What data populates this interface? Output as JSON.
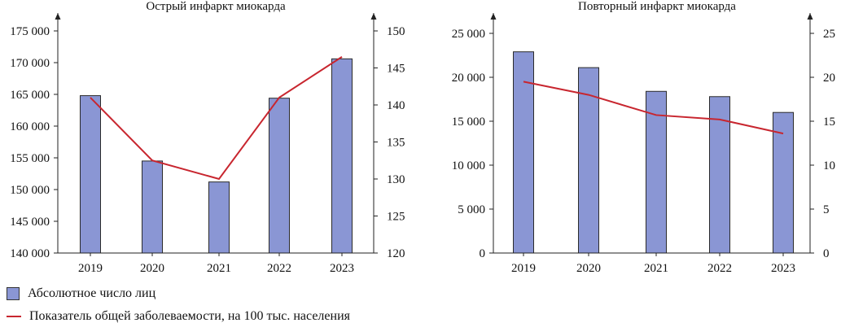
{
  "colors": {
    "bar": "#8A96D4",
    "bar_stroke": "#2b2b2b",
    "line": "#C8262F",
    "axis": "#222222"
  },
  "legend": {
    "bar_label": "Абсолютное число лиц",
    "line_label": "Показатель общей заболеваемости, на 100 тыс. населения"
  },
  "chart_data": [
    {
      "type": "bar",
      "title": "Острый инфаркт миокарда",
      "categories": [
        "2019",
        "2020",
        "2021",
        "2022",
        "2023"
      ],
      "series": [
        {
          "name": "Абсолютное число лиц",
          "type": "bar",
          "axis": "left",
          "values": [
            164800,
            154500,
            151200,
            164400,
            170600
          ]
        },
        {
          "name": "Показатель общей заболеваемости, на 100 тыс. населения",
          "type": "line",
          "axis": "right",
          "values": [
            141.0,
            132.5,
            130.0,
            141.0,
            146.5
          ]
        }
      ],
      "left_axis": {
        "ylim": [
          140000,
          175000
        ],
        "ticks": [
          "140 000",
          "145 000",
          "150 000",
          "155 000",
          "160 000",
          "165 000",
          "170 000",
          "175 000"
        ]
      },
      "right_axis": {
        "ylim": [
          120,
          150
        ],
        "ticks": [
          "120",
          "125",
          "130",
          "135",
          "140",
          "145",
          "150"
        ]
      },
      "grid": false,
      "legend_position": "bottom-left"
    },
    {
      "type": "bar",
      "title": "Повторный инфаркт миокарда",
      "categories": [
        "2019",
        "2020",
        "2021",
        "2022",
        "2023"
      ],
      "series": [
        {
          "name": "Абсолютное число лиц",
          "type": "bar",
          "axis": "left",
          "values": [
            22900,
            21100,
            18400,
            17800,
            16000
          ]
        },
        {
          "name": "Показатель общей заболеваемости, на 100 тыс. населения",
          "type": "line",
          "axis": "right",
          "values": [
            19.5,
            18.0,
            15.7,
            15.2,
            13.6
          ]
        }
      ],
      "left_axis": {
        "ylim": [
          0,
          25000
        ],
        "ticks": [
          "0",
          "5 000",
          "10 000",
          "15 000",
          "20 000",
          "25 000"
        ]
      },
      "right_axis": {
        "ylim": [
          0,
          25
        ],
        "ticks": [
          "0",
          "5",
          "10",
          "15",
          "20",
          "25"
        ]
      },
      "grid": false,
      "legend_position": "bottom-left"
    }
  ]
}
